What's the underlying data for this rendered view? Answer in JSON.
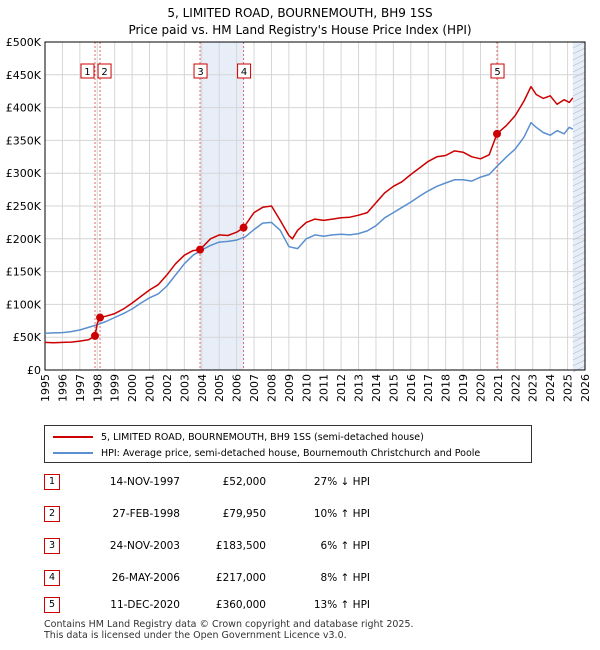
{
  "chart_data": {
    "type": "line",
    "title": "5, LIMITED ROAD, BOURNEMOUTH, BH9 1SS",
    "subtitle": "Price paid vs. HM Land Registry's House Price Index (HPI)",
    "xlim": [
      1995,
      2026
    ],
    "ylim": [
      0,
      500000
    ],
    "x_ticks": [
      "1995",
      "1996",
      "1997",
      "1998",
      "1999",
      "2000",
      "2001",
      "2002",
      "2003",
      "2004",
      "2005",
      "2006",
      "2007",
      "2008",
      "2009",
      "2010",
      "2011",
      "2012",
      "2013",
      "2014",
      "2015",
      "2016",
      "2017",
      "2018",
      "2019",
      "2020",
      "2021",
      "2022",
      "2023",
      "2024",
      "2025",
      "2026"
    ],
    "y_ticks": [
      {
        "value": 0,
        "label": "£0"
      },
      {
        "value": 50000,
        "label": "£50K"
      },
      {
        "value": 100000,
        "label": "£100K"
      },
      {
        "value": 150000,
        "label": "£150K"
      },
      {
        "value": 200000,
        "label": "£200K"
      },
      {
        "value": 250000,
        "label": "£250K"
      },
      {
        "value": 300000,
        "label": "£300K"
      },
      {
        "value": 350000,
        "label": "£350K"
      },
      {
        "value": 400000,
        "label": "£400K"
      },
      {
        "value": 450000,
        "label": "£450K"
      },
      {
        "value": 500000,
        "label": "£500K"
      }
    ],
    "grid": true,
    "series": [
      {
        "name": "5, LIMITED ROAD, BOURNEMOUTH, BH9 1SS (semi-detached house)",
        "color": "#cc0000",
        "x": [
          1995.0,
          1995.5,
          1996.0,
          1996.5,
          1997.0,
          1997.5,
          1997.87,
          1998.0,
          1998.16,
          1998.5,
          1999.0,
          1999.5,
          2000.0,
          2000.5,
          2001.0,
          2001.5,
          2002.0,
          2002.5,
          2003.0,
          2003.5,
          2003.9,
          2004.5,
          2005.0,
          2005.5,
          2006.0,
          2006.4,
          2007.0,
          2007.5,
          2008.0,
          2008.5,
          2009.0,
          2009.2,
          2009.5,
          2010.0,
          2010.5,
          2011.0,
          2011.5,
          2012.0,
          2012.5,
          2013.0,
          2013.5,
          2014.0,
          2014.5,
          2015.0,
          2015.5,
          2016.0,
          2016.5,
          2017.0,
          2017.5,
          2018.0,
          2018.5,
          2019.0,
          2019.5,
          2020.0,
          2020.5,
          2020.95,
          2021.5,
          2022.0,
          2022.5,
          2022.9,
          2023.2,
          2023.6,
          2024.0,
          2024.4,
          2024.8,
          2025.1,
          2025.3
        ],
        "values": [
          42000,
          41500,
          42000,
          42500,
          44000,
          46000,
          52000,
          71000,
          79950,
          82000,
          86000,
          93000,
          102000,
          112000,
          122000,
          130000,
          145000,
          162000,
          175000,
          182000,
          183500,
          200000,
          206000,
          205000,
          210000,
          217000,
          240000,
          248000,
          250000,
          228000,
          205000,
          200000,
          213000,
          225000,
          230000,
          228000,
          230000,
          232000,
          233000,
          236000,
          240000,
          255000,
          270000,
          280000,
          287000,
          298000,
          308000,
          318000,
          325000,
          327000,
          334000,
          332000,
          325000,
          322000,
          328000,
          360000,
          373000,
          388000,
          410000,
          432000,
          420000,
          414000,
          418000,
          405000,
          412000,
          408000,
          415000
        ]
      },
      {
        "name": "HPI: Average price, semi-detached house, Bournemouth Christchurch and Poole",
        "color": "#5a8fd0",
        "x": [
          1995.0,
          1995.5,
          1996.0,
          1996.5,
          1997.0,
          1997.5,
          1998.0,
          1998.5,
          1999.0,
          1999.5,
          2000.0,
          2000.5,
          2001.0,
          2001.5,
          2002.0,
          2002.5,
          2003.0,
          2003.5,
          2004.0,
          2004.5,
          2005.0,
          2005.5,
          2006.0,
          2006.5,
          2007.0,
          2007.5,
          2008.0,
          2008.5,
          2009.0,
          2009.5,
          2010.0,
          2010.5,
          2011.0,
          2011.5,
          2012.0,
          2012.5,
          2013.0,
          2013.5,
          2014.0,
          2014.5,
          2015.0,
          2015.5,
          2016.0,
          2016.5,
          2017.0,
          2017.5,
          2018.0,
          2018.5,
          2019.0,
          2019.5,
          2020.0,
          2020.5,
          2021.0,
          2021.5,
          2022.0,
          2022.5,
          2022.9,
          2023.2,
          2023.6,
          2024.0,
          2024.4,
          2024.8,
          2025.1,
          2025.3
        ],
        "values": [
          56000,
          56500,
          57000,
          58500,
          61000,
          65000,
          69000,
          74000,
          80000,
          86000,
          93000,
          102000,
          110000,
          116000,
          128000,
          145000,
          162000,
          175000,
          183000,
          190000,
          195000,
          196000,
          198000,
          203000,
          214000,
          224000,
          225000,
          213000,
          188000,
          185000,
          200000,
          206000,
          204000,
          206000,
          207000,
          206000,
          208000,
          212000,
          220000,
          232000,
          240000,
          248000,
          256000,
          265000,
          273000,
          280000,
          285000,
          290000,
          290000,
          288000,
          294000,
          298000,
          312000,
          325000,
          337000,
          355000,
          377000,
          370000,
          362000,
          358000,
          365000,
          360000,
          370000,
          367000
        ]
      }
    ],
    "sales": [
      {
        "id": "1",
        "x": 1997.87,
        "price": 52000
      },
      {
        "id": "2",
        "x": 1998.16,
        "price": 79950
      },
      {
        "id": "3",
        "x": 2003.9,
        "price": 183500
      },
      {
        "id": "4",
        "x": 2006.4,
        "price": 217000
      },
      {
        "id": "5",
        "x": 2020.95,
        "price": 360000
      }
    ],
    "shaded_periods": [
      {
        "from": 2003.9,
        "to": 2006.4
      },
      {
        "from": 2025.3,
        "to": 2026.0
      }
    ],
    "box_label_position": "top"
  },
  "legend": {
    "property_label": "5, LIMITED ROAD, BOURNEMOUTH, BH9 1SS (semi-detached house)",
    "hpi_label": "HPI: Average price, semi-detached house, Bournemouth Christchurch and Poole"
  },
  "transactions": [
    {
      "num": "1",
      "date": "14-NOV-1997",
      "price": "£52,000",
      "hpi": "27% ↓ HPI"
    },
    {
      "num": "2",
      "date": "27-FEB-1998",
      "price": "£79,950",
      "hpi": "10% ↑ HPI"
    },
    {
      "num": "3",
      "date": "24-NOV-2003",
      "price": "£183,500",
      "hpi": "6% ↑ HPI"
    },
    {
      "num": "4",
      "date": "26-MAY-2006",
      "price": "£217,000",
      "hpi": "8% ↑ HPI"
    },
    {
      "num": "5",
      "date": "11-DEC-2020",
      "price": "£360,000",
      "hpi": "13% ↑ HPI"
    }
  ],
  "footer": {
    "line1": "Contains HM Land Registry data © Crown copyright and database right 2025.",
    "line2": "This data is licensed under the Open Government Licence v3.0."
  },
  "colors": {
    "property": "#cc0000",
    "hpi": "#5a8fd0",
    "shade": "#e8eef8",
    "grid": "#d6d6d6"
  }
}
